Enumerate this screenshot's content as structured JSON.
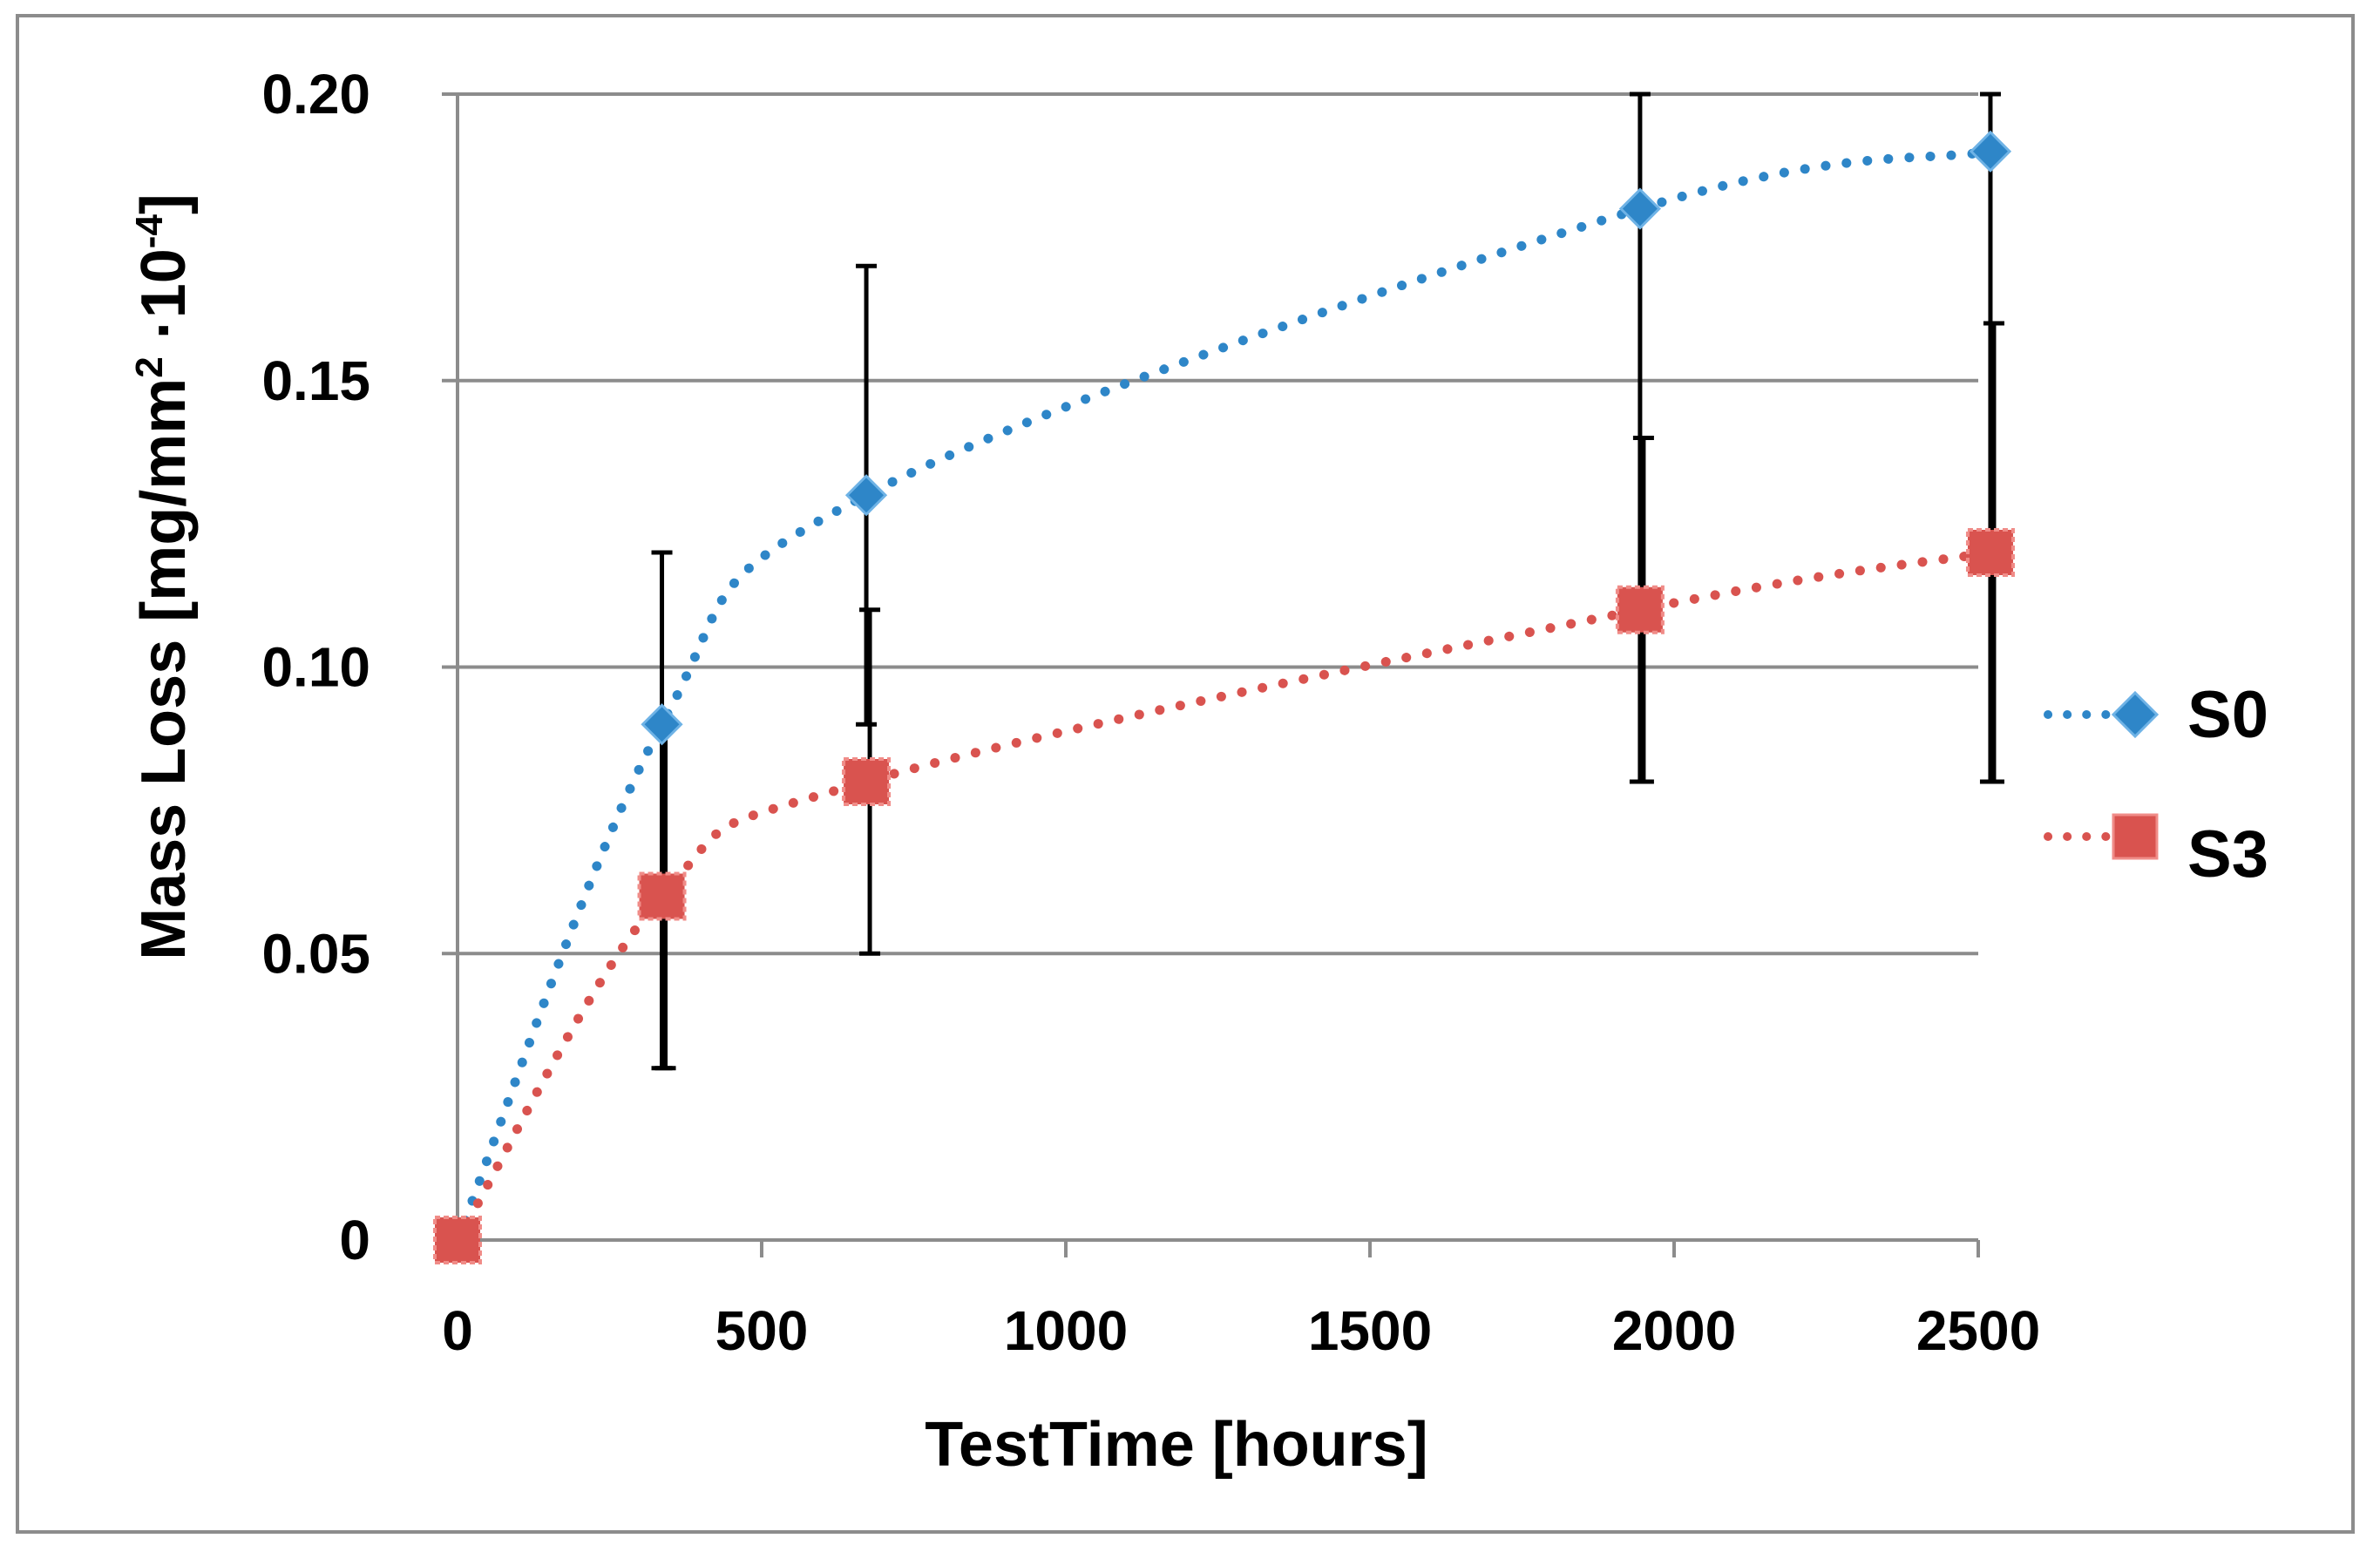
{
  "chart_data": {
    "type": "line",
    "title": "",
    "xlabel": "TestTime [hours]",
    "ylabel": {
      "prefix": "Mass Loss [mg/mm",
      "sup1": "2",
      "middle": " ·10",
      "sup2": "-4",
      "suffix": "]"
    },
    "xlim": [
      0,
      2500
    ],
    "ylim": [
      0,
      0.2
    ],
    "xticks": [
      0,
      500,
      1000,
      1500,
      2000,
      2500
    ],
    "xtick_labels": [
      "0",
      "500",
      "1000",
      "1500",
      "2000",
      "2500"
    ],
    "yticks": [
      0,
      0.05,
      0.1,
      0.15,
      0.2
    ],
    "ytick_labels": [
      "0",
      "0.05",
      "0.10",
      "0.15",
      "0.20"
    ],
    "grid": "horizontal",
    "legend_position": "right",
    "series": [
      {
        "name": "S0",
        "color": "#2e86c8",
        "marker": "diamond",
        "points": [
          {
            "x": 0,
            "y": 0.0,
            "err_low": null,
            "err_high": null
          },
          {
            "x": 336,
            "y": 0.09,
            "err_low": 0.03,
            "err_high": 0.12
          },
          {
            "x": 672,
            "y": 0.13,
            "err_low": 0.09,
            "err_high": 0.17
          },
          {
            "x": 1944,
            "y": 0.18,
            "err_low": 0.08,
            "err_high": 0.2
          },
          {
            "x": 2520,
            "y": 0.19,
            "err_low": 0.08,
            "err_high": 0.2
          }
        ]
      },
      {
        "name": "S3",
        "color": "#d9534f",
        "marker": "square",
        "points": [
          {
            "x": 0,
            "y": 0.0,
            "err_low": null,
            "err_high": null
          },
          {
            "x": 336,
            "y": 0.06,
            "err_low": 0.03,
            "err_high": 0.09
          },
          {
            "x": 672,
            "y": 0.08,
            "err_low": 0.05,
            "err_high": 0.11
          },
          {
            "x": 1944,
            "y": 0.11,
            "err_low": 0.08,
            "err_high": 0.14
          },
          {
            "x": 2520,
            "y": 0.12,
            "err_low": 0.08,
            "err_high": 0.16
          }
        ]
      }
    ]
  }
}
